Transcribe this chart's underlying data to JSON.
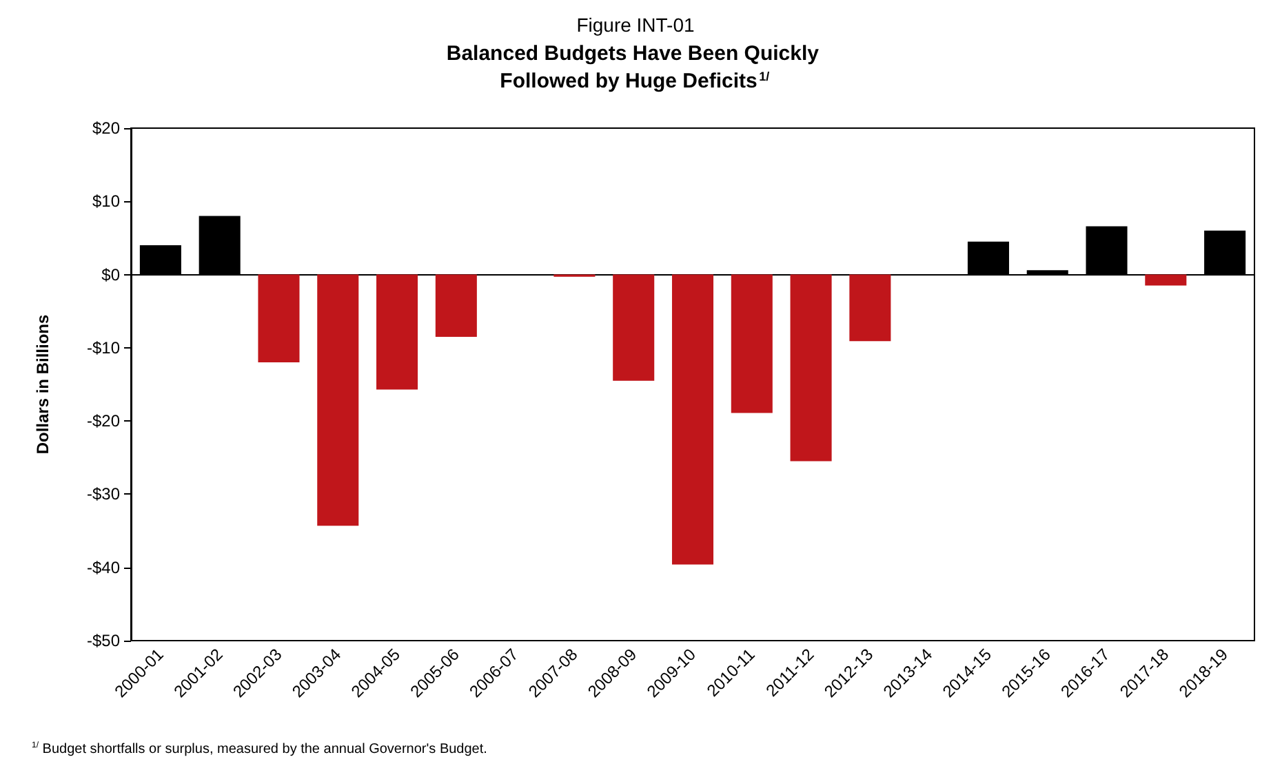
{
  "chart_data": {
    "type": "bar",
    "title": "Figure INT-01",
    "subtitle": "Balanced Budgets Have Been Quickly Followed by Huge Deficits$^{1/}$",
    "ylabel": "Dollars in Billions",
    "categories": [
      "2000-01",
      "2001-02",
      "2002-03",
      "2003-04",
      "2004-05",
      "2005-06",
      "2006-07",
      "2007-08",
      "2008-09",
      "2009-10",
      "2010-11",
      "2011-12",
      "2012-13",
      "2013-14",
      "2014-15",
      "2015-16",
      "2016-17",
      "2017-18",
      "2018-19"
    ],
    "values": [
      4,
      8,
      -12,
      -34.3,
      -15.7,
      -8.5,
      0,
      -0.3,
      -14.5,
      -39.6,
      -18.9,
      -25.5,
      -9.1,
      0,
      4.5,
      0.6,
      6.6,
      -1.5,
      6
    ],
    "colors": [
      "#000000",
      "#000000",
      "#c0161b",
      "#c0161b",
      "#c0161b",
      "#c0161b",
      "#c0161b",
      "#c0161b",
      "#c0161b",
      "#c0161b",
      "#c0161b",
      "#c0161b",
      "#c0161b",
      "#000000",
      "#000000",
      "#000000",
      "#000000",
      "#c0161b",
      "#000000"
    ],
    "ylim": [
      -50,
      20
    ],
    "yticks": [
      {
        "value": -50,
        "label": "-$50"
      },
      {
        "value": -40,
        "label": "-$40"
      },
      {
        "value": -30,
        "label": "-$30"
      },
      {
        "value": -20,
        "label": "-$20"
      },
      {
        "value": -10,
        "label": "-$10"
      },
      {
        "value": 0,
        "label": "$0"
      },
      {
        "value": 10,
        "label": "$10"
      },
      {
        "value": 20,
        "label": "$20"
      }
    ],
    "annotations": [
      "$^{1/}$ Budget shortfalls or surplus, measured by the annual Governor's Budget."
    ]
  }
}
